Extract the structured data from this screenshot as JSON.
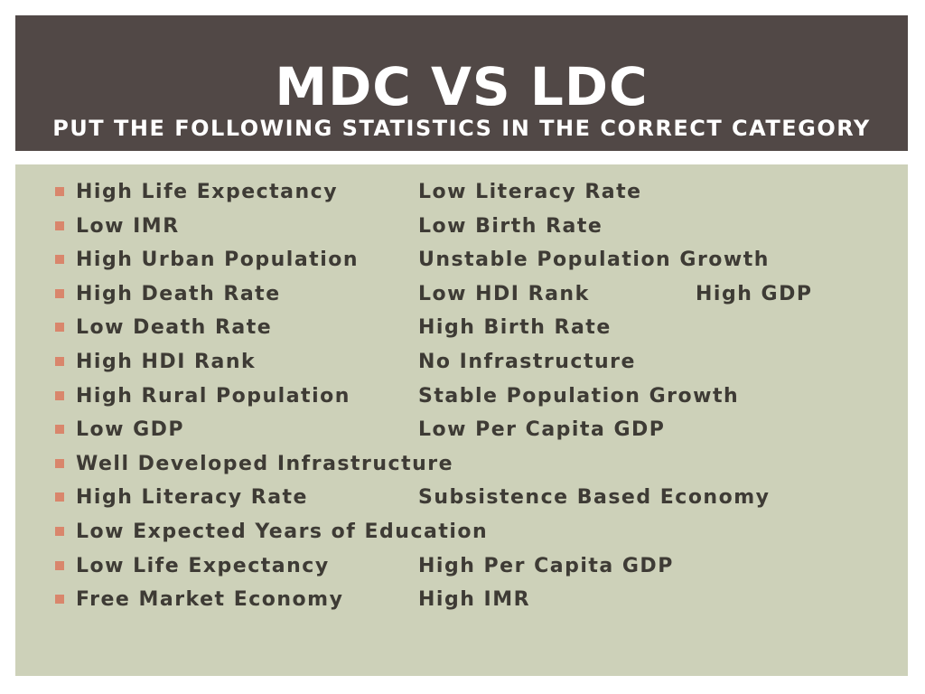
{
  "title": "MDC vs LDC",
  "subtitle": "Put the following statistics in the correct category",
  "items": [
    {
      "col1": "High Life Expectancy",
      "col2": "Low Literacy Rate",
      "col3": ""
    },
    {
      "col1": "Low IMR",
      "col2": "Low Birth Rate",
      "col3": ""
    },
    {
      "col1": "High Urban Population",
      "col2": "Unstable Population Growth",
      "col3": ""
    },
    {
      "col1": "High Death Rate",
      "col2": "Low HDI Rank",
      "col3": "High GDP"
    },
    {
      "col1": "Low Death Rate",
      "col2": "High Birth Rate",
      "col3": ""
    },
    {
      "col1": "High HDI Rank",
      "col2": "No Infrastructure",
      "col3": ""
    },
    {
      "col1": "High Rural Population",
      "col2": "Stable Population Growth",
      "col3": ""
    },
    {
      "col1": "Low GDP",
      "col2": "Low Per Capita GDP",
      "col3": ""
    },
    {
      "col1": "Well Developed Infrastructure",
      "col2": "",
      "col3": ""
    },
    {
      "col1": "High Literacy Rate",
      "col2": "Subsistence Based Economy",
      "col3": ""
    },
    {
      "col1": "Low Expected Years of Education",
      "col2": "",
      "col3": ""
    },
    {
      "col1": "Low Life Expectancy",
      "col2": "High Per Capita GDP",
      "col3": ""
    },
    {
      "col1": "Free Market Economy",
      "col2": "High IMR",
      "col3": ""
    }
  ],
  "colors": {
    "title_band": "#514846",
    "content_panel": "#cdd1b9",
    "bullet": "#d9866c",
    "text": "#3e3b35"
  }
}
